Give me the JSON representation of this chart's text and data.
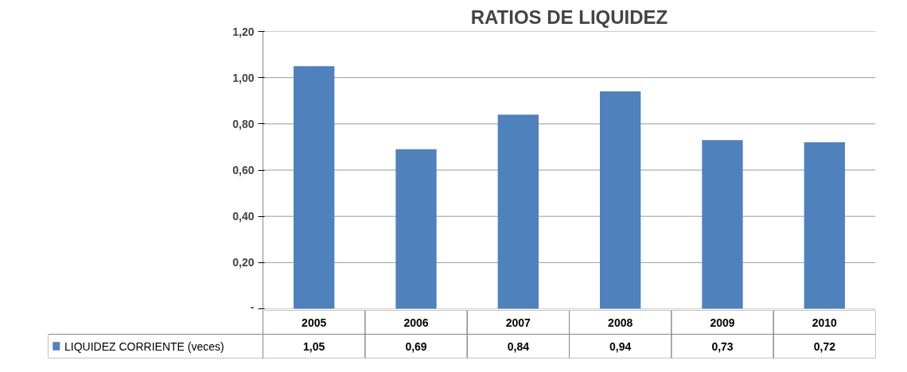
{
  "chart_data": {
    "type": "bar",
    "title": "RATIOS DE LIQUIDEZ",
    "categories": [
      "2005",
      "2006",
      "2007",
      "2008",
      "2009",
      "2010"
    ],
    "series": [
      {
        "name": "LIQUIDEZ CORRIENTE (veces)",
        "color": "#4f81bd",
        "values": [
          1.05,
          0.69,
          0.84,
          0.94,
          0.73,
          0.72
        ],
        "value_labels": [
          "1,05",
          "0,69",
          "0,84",
          "0,94",
          "0,73",
          "0,72"
        ]
      }
    ],
    "ylim": [
      0,
      1.2
    ],
    "yticks": [
      {
        "value": 0,
        "label": "-"
      },
      {
        "value": 0.2,
        "label": "0,20"
      },
      {
        "value": 0.4,
        "label": "0,40"
      },
      {
        "value": 0.6,
        "label": "0,60"
      },
      {
        "value": 0.8,
        "label": "0,80"
      },
      {
        "value": 1.0,
        "label": "1,00"
      },
      {
        "value": 1.2,
        "label": "1,20"
      }
    ],
    "grid": "y",
    "legend": "bottom"
  }
}
